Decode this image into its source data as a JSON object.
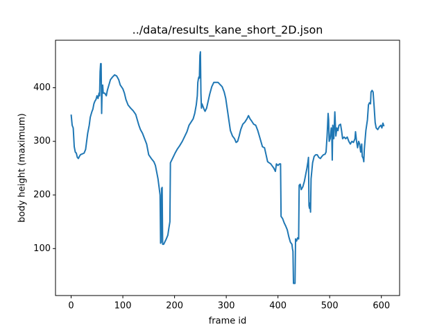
{
  "chart_data": {
    "type": "line",
    "title": "../data/results_kane_short_2D.json",
    "x_label": "frame id",
    "y_label": "body height (maximum)",
    "color": "#1f77b4",
    "x": [
      0,
      2,
      4,
      6,
      8,
      10,
      12,
      14,
      16,
      18,
      20,
      25,
      28,
      30,
      32,
      35,
      37,
      40,
      42,
      44,
      46,
      48,
      50,
      52,
      54,
      55,
      56,
      57,
      58,
      59,
      60,
      61,
      62,
      65,
      68,
      70,
      73,
      76,
      80,
      84,
      88,
      92,
      95,
      100,
      103,
      106,
      110,
      115,
      120,
      125,
      128,
      131,
      134,
      138,
      142,
      146,
      150,
      155,
      160,
      163,
      166,
      168,
      170,
      172,
      173,
      174,
      175,
      176,
      177,
      179,
      181,
      184,
      187,
      189,
      191,
      192,
      195,
      198,
      201,
      205,
      210,
      215,
      220,
      224,
      228,
      232,
      236,
      239,
      242,
      244,
      245,
      246,
      247,
      248,
      249,
      250,
      251,
      252,
      253,
      255,
      257,
      259,
      262,
      265,
      268,
      272,
      276,
      280,
      284,
      288,
      292,
      296,
      299,
      302,
      305,
      308,
      312,
      316,
      319,
      322,
      325,
      328,
      332,
      336,
      340,
      343,
      346,
      349,
      353,
      357,
      361,
      364,
      367,
      370,
      374,
      377,
      380,
      383,
      386,
      389,
      392,
      395,
      397,
      400,
      403,
      405,
      406,
      409,
      412,
      415,
      418,
      421,
      424,
      427,
      428,
      429,
      430,
      433,
      434,
      436,
      438,
      440,
      441,
      443,
      445,
      448,
      451,
      454,
      456,
      458,
      459,
      460,
      461,
      462,
      463,
      464,
      467,
      470,
      473,
      476,
      479,
      482,
      485,
      488,
      491,
      493,
      495,
      496,
      497,
      498,
      499,
      501,
      503,
      504,
      505,
      506,
      508,
      510,
      512,
      514,
      516,
      518,
      521,
      523,
      525,
      528,
      531,
      534,
      537,
      540,
      543,
      546,
      549,
      550,
      552,
      554,
      556,
      558,
      560,
      562,
      563,
      565,
      566,
      567,
      570,
      573,
      575,
      577,
      579,
      580,
      582,
      584,
      586,
      588,
      590,
      593,
      596,
      599,
      601,
      603,
      605
    ],
    "values": [
      350,
      330,
      325,
      290,
      280,
      278,
      270,
      268,
      272,
      275,
      276,
      278,
      285,
      300,
      315,
      330,
      345,
      355,
      360,
      370,
      375,
      378,
      385,
      380,
      390,
      385,
      430,
      445,
      445,
      352,
      400,
      405,
      390,
      390,
      385,
      395,
      405,
      415,
      420,
      424,
      422,
      415,
      405,
      398,
      390,
      378,
      368,
      362,
      357,
      350,
      340,
      330,
      322,
      315,
      305,
      295,
      275,
      268,
      262,
      255,
      240,
      230,
      215,
      200,
      110,
      112,
      212,
      214,
      108,
      108,
      112,
      118,
      125,
      138,
      150,
      260,
      266,
      272,
      278,
      285,
      292,
      300,
      310,
      318,
      330,
      336,
      342,
      352,
      368,
      385,
      410,
      416,
      420,
      418,
      460,
      467,
      390,
      362,
      370,
      365,
      360,
      356,
      362,
      375,
      388,
      402,
      410,
      410,
      410,
      406,
      402,
      392,
      380,
      360,
      340,
      320,
      310,
      305,
      298,
      300,
      310,
      322,
      332,
      336,
      342,
      348,
      342,
      338,
      332,
      330,
      320,
      310,
      300,
      290,
      288,
      275,
      262,
      260,
      258,
      254,
      250,
      244,
      258,
      255,
      258,
      258,
      160,
      156,
      148,
      142,
      135,
      122,
      112,
      108,
      100,
      95,
      35,
      35,
      118,
      114,
      120,
      118,
      218,
      220,
      210,
      215,
      225,
      240,
      250,
      262,
      270,
      180,
      175,
      185,
      168,
      230,
      260,
      272,
      275,
      275,
      270,
      268,
      272,
      275,
      276,
      280,
      310,
      330,
      352,
      340,
      300,
      305,
      325,
      320,
      265,
      330,
      305,
      355,
      310,
      325,
      320,
      330,
      332,
      320,
      305,
      308,
      305,
      308,
      300,
      295,
      300,
      298,
      305,
      318,
      300,
      288,
      300,
      295,
      280,
      295,
      272,
      268,
      262,
      285,
      320,
      340,
      368,
      372,
      370,
      392,
      395,
      392,
      365,
      335,
      325,
      322,
      327,
      330,
      325,
      334,
      328
    ],
    "xlim": [
      -30.25,
      635.25
    ],
    "ylim": [
      12.4,
      488.6
    ],
    "xticks": [
      0,
      100,
      200,
      300,
      400,
      500,
      600
    ],
    "yticks": [
      100,
      200,
      300,
      400
    ]
  }
}
